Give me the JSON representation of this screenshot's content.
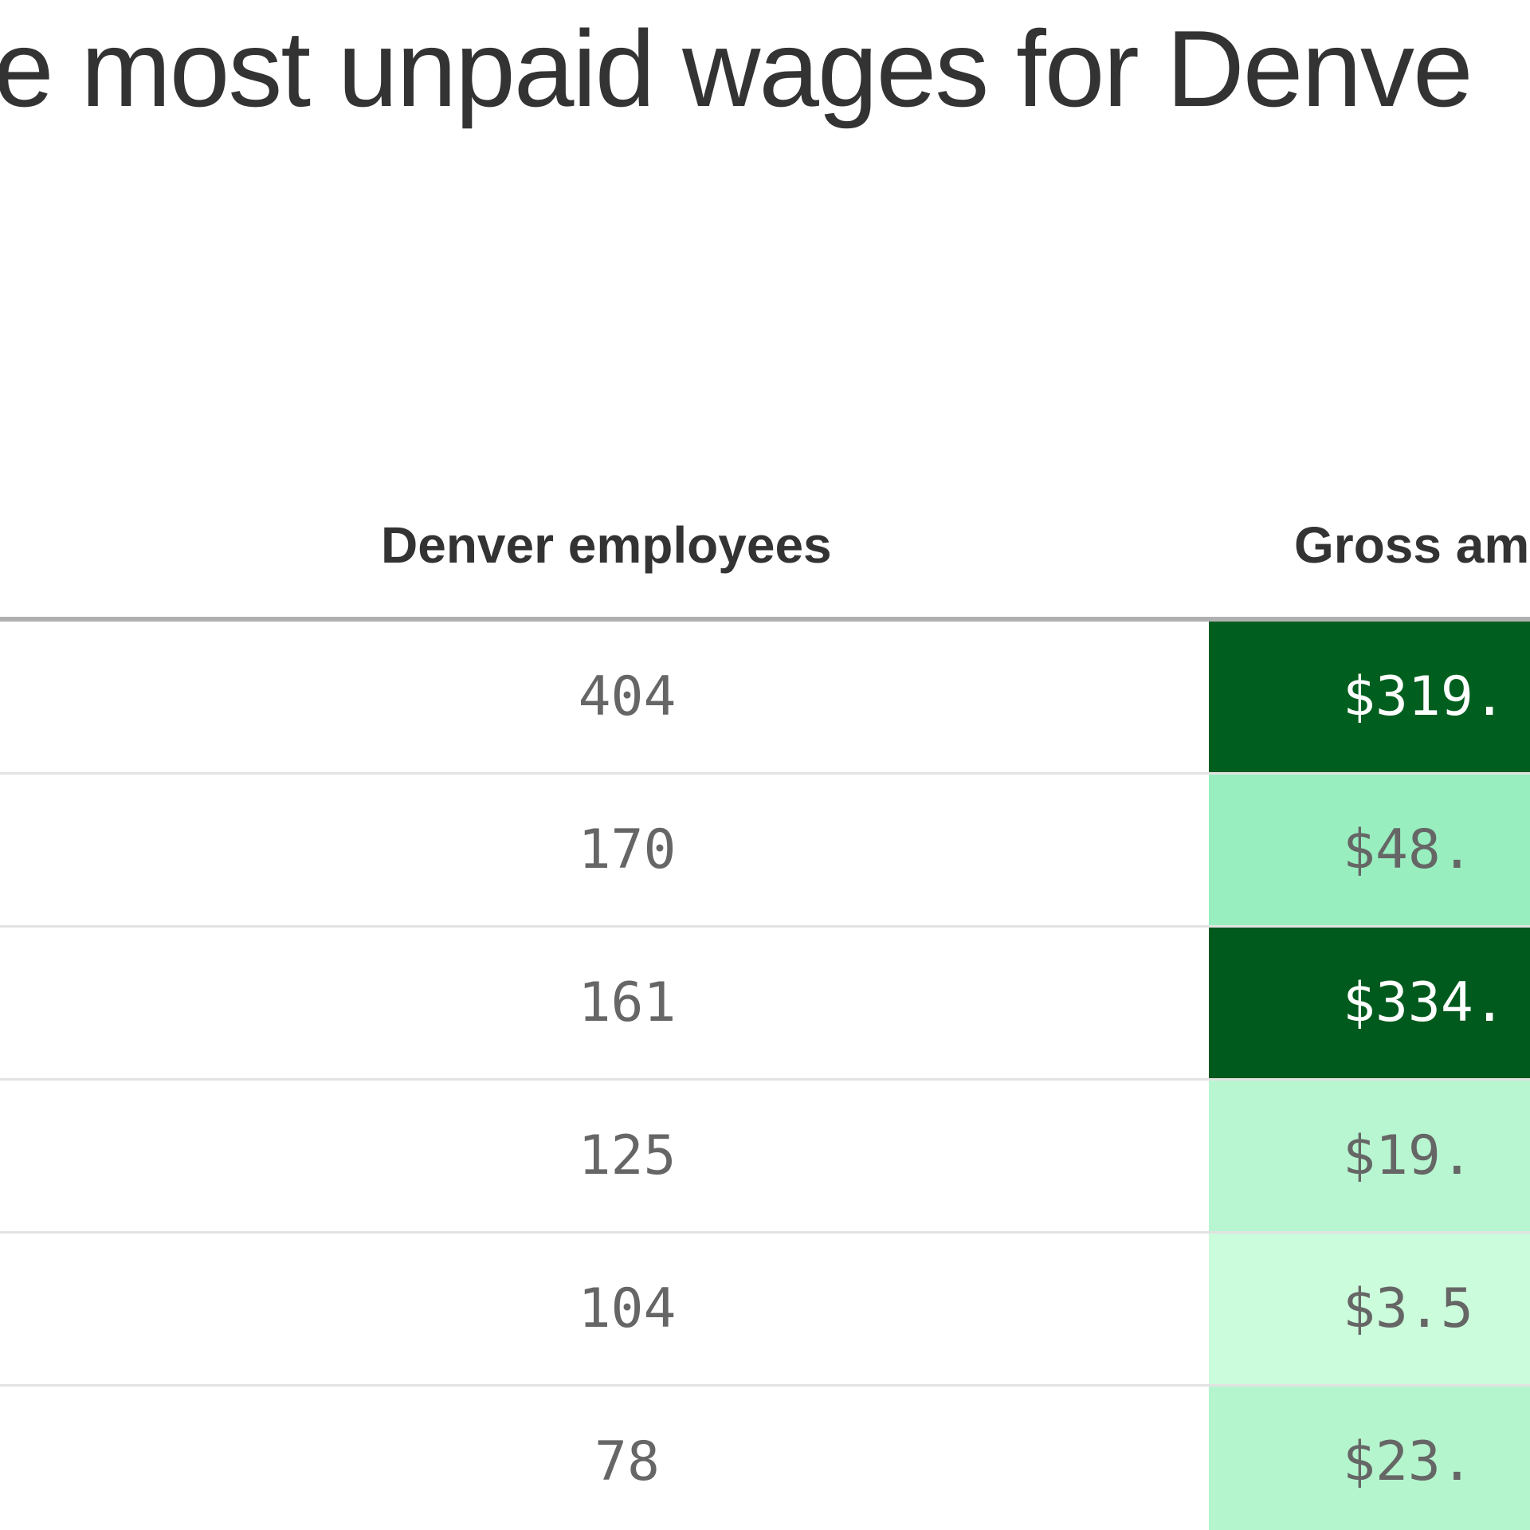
{
  "chart_data": {
    "type": "table",
    "title": "e most unpaid wages for Denve",
    "columns": [
      "Denver employees",
      "Gross am"
    ],
    "rows": [
      {
        "employees": "404",
        "gross": "$319.",
        "color": "#005f1f",
        "text_color": "#ffffff"
      },
      {
        "employees": "170",
        "gross": "$48.",
        "color": "#98eebf",
        "text_color": "#666666"
      },
      {
        "employees": "161",
        "gross": "$334.",
        "color": "#005a1d",
        "text_color": "#ffffff"
      },
      {
        "employees": "125",
        "gross": "$19.",
        "color": "#b7f6d0",
        "text_color": "#666666"
      },
      {
        "employees": "104",
        "gross": "$3.5",
        "color": "#cbfcdb",
        "text_color": "#666666"
      },
      {
        "employees": "78",
        "gross": "$23.",
        "color": "#b4f5cd",
        "text_color": "#666666"
      }
    ]
  }
}
